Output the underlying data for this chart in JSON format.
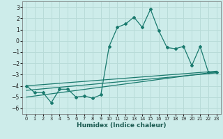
{
  "title": "",
  "xlabel": "Humidex (Indice chaleur)",
  "ylabel": "",
  "bg_color": "#cdecea",
  "grid_color": "#b8dbd8",
  "line_color": "#1a7a6e",
  "xlim": [
    -0.5,
    23.5
  ],
  "ylim": [
    -6.5,
    3.5
  ],
  "yticks": [
    3,
    2,
    1,
    0,
    -1,
    -2,
    -3,
    -4,
    -5,
    -6
  ],
  "xticks": [
    0,
    1,
    2,
    3,
    4,
    5,
    6,
    7,
    8,
    9,
    10,
    11,
    12,
    13,
    14,
    15,
    16,
    17,
    18,
    19,
    20,
    21,
    22,
    23
  ],
  "main_x": [
    0,
    1,
    2,
    3,
    4,
    5,
    6,
    7,
    8,
    9,
    10,
    11,
    12,
    13,
    14,
    15,
    16,
    17,
    18,
    19,
    20,
    21,
    22,
    23
  ],
  "main_y": [
    -4.0,
    -4.6,
    -4.6,
    -5.5,
    -4.3,
    -4.3,
    -5.0,
    -4.9,
    -5.1,
    -4.8,
    -0.5,
    1.2,
    1.5,
    2.1,
    1.2,
    2.8,
    0.9,
    -0.6,
    -0.7,
    -0.5,
    -2.2,
    -0.5,
    -2.8,
    -2.8
  ],
  "line1_x": [
    0,
    23
  ],
  "line1_y": [
    -4.0,
    -2.7
  ],
  "line2_x": [
    0,
    23
  ],
  "line2_y": [
    -4.4,
    -2.85
  ],
  "line3_x": [
    0,
    23
  ],
  "line3_y": [
    -5.0,
    -2.75
  ]
}
